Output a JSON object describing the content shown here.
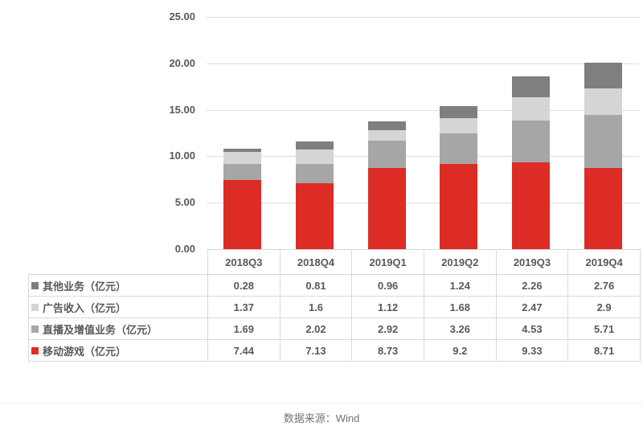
{
  "chart_data": {
    "type": "bar",
    "stacked": true,
    "title": "",
    "categories": [
      "2018Q3",
      "2018Q4",
      "2019Q1",
      "2019Q2",
      "2019Q3",
      "2019Q4"
    ],
    "series": [
      {
        "key": "mobile-games",
        "name": "移动游戏（亿元）",
        "color": "#dd2c25",
        "values": [
          7.44,
          7.13,
          8.73,
          9.2,
          9.33,
          8.71
        ]
      },
      {
        "key": "live-streaming-vas",
        "name": "直播及增值业务（亿元）",
        "color": "#a6a6a6",
        "values": [
          1.69,
          2.02,
          2.92,
          3.26,
          4.53,
          5.71
        ]
      },
      {
        "key": "ad-revenue",
        "name": "广告收入（亿元）",
        "color": "#d5d5d5",
        "values": [
          1.37,
          1.6,
          1.12,
          1.68,
          2.47,
          2.9
        ]
      },
      {
        "key": "other-business",
        "name": "其他业务（亿元）",
        "color": "#7f7f7f",
        "values": [
          0.28,
          0.81,
          0.96,
          1.24,
          2.26,
          2.76
        ]
      }
    ],
    "y_axis": {
      "min": 0,
      "max": 25,
      "step": 5,
      "tick_labels": [
        "0.00",
        "5.00",
        "10.00",
        "15.00",
        "20.00",
        "25.00"
      ]
    },
    "grid": true,
    "legend_position": "data-table-left",
    "ylim": [
      0,
      25
    ]
  },
  "data_table": {
    "rows": [
      {
        "key": "other-business",
        "label": "其他业务（亿元）",
        "color": "#7f7f7f",
        "values": [
          "0.28",
          "0.81",
          "0.96",
          "1.24",
          "2.26",
          "2.76"
        ]
      },
      {
        "key": "ad-revenue",
        "label": "广告收入（亿元）",
        "color": "#d5d5d5",
        "values": [
          "1.37",
          "1.6",
          "1.12",
          "1.68",
          "2.47",
          "2.9"
        ]
      },
      {
        "key": "live-streaming-vas",
        "label": "直播及增值业务（亿元）",
        "color": "#a6a6a6",
        "values": [
          "1.69",
          "2.02",
          "2.92",
          "3.26",
          "4.53",
          "5.71"
        ]
      },
      {
        "key": "mobile-games",
        "label": "移动游戏（亿元）",
        "color": "#dd2c25",
        "values": [
          "7.44",
          "7.13",
          "8.73",
          "9.2",
          "9.33",
          "8.71"
        ]
      }
    ]
  },
  "caption": {
    "text": "数据来源：Wind"
  }
}
